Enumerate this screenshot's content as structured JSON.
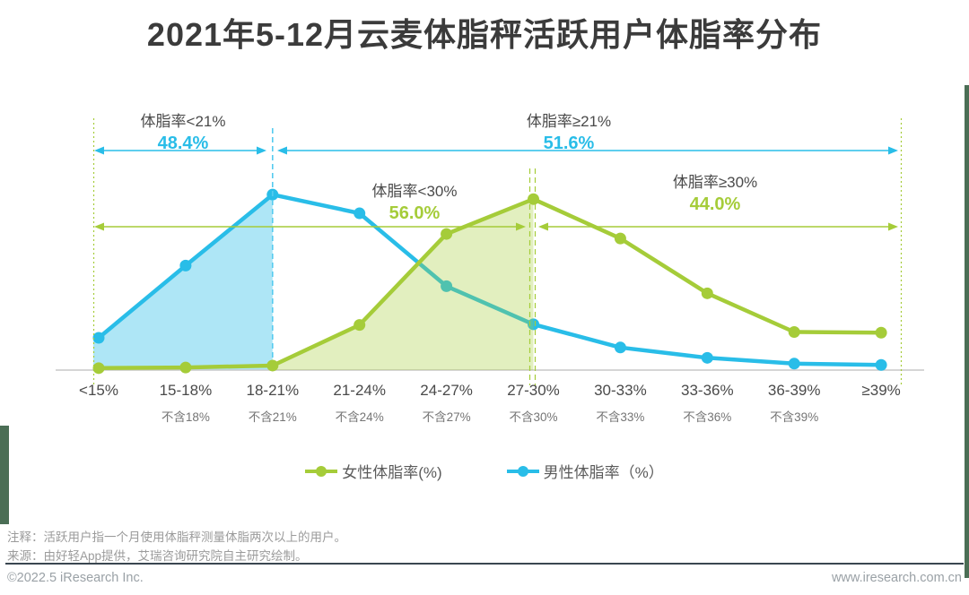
{
  "title": "2021年5-12月云麦体脂秤活跃用户体脂率分布",
  "annotations": [
    {
      "label": "体脂率<21%",
      "value": "48.4%",
      "series": "male"
    },
    {
      "label": "体脂率≥21%",
      "value": "51.6%",
      "series": "male"
    },
    {
      "label": "体脂率<30%",
      "value": "56.0%",
      "series": "female"
    },
    {
      "label": "体脂率≥30%",
      "value": "44.0%",
      "series": "female"
    }
  ],
  "legend": {
    "female": "女性体脂率(%)",
    "male": "男性体脂率（%）"
  },
  "footer": {
    "note1": "注释：活跃用户指一个月使用体脂秤测量体脂两次以上的用户。",
    "note2": "来源：由好轻App提供，艾瑞咨询研究院自主研究绘制。",
    "copyright": "©2022.5 iResearch Inc.",
    "website": "www.iresearch.com.cn"
  },
  "colors": {
    "male": "#29BDE8",
    "female": "#A5CC39",
    "male_dashed_guide": "#55CBEF",
    "male_fill_light": "#A9E2F4",
    "female_fill_light": "#DDE9B4",
    "title_text": "#3B3B3B",
    "axis_line": "#C8C8C8",
    "axis_label": "#4A4A4A",
    "note_text": "#9B9B9B",
    "divider": "#3A4650",
    "edge_strip": "#4B6E55"
  },
  "chart_data": {
    "type": "line",
    "title": "2021年5-12月云麦体脂秤活跃用户体脂率分布",
    "categories": [
      "<15%",
      "15-18%",
      "18-21%",
      "21-24%",
      "24-27%",
      "27-30%",
      "30-33%",
      "33-36%",
      "36-39%",
      "≥39%"
    ],
    "sub_labels": [
      "",
      "不含18%",
      "不含21%",
      "不含24%",
      "不含27%",
      "不含30%",
      "不含33%",
      "不含36%",
      "不含39%",
      ""
    ],
    "series": [
      {
        "name": "女性体脂率(%)",
        "color": "#A5CC39",
        "values": [
          0.3,
          0.4,
          0.7,
          7.0,
          21.1,
          26.5,
          20.4,
          11.9,
          5.9,
          5.8
        ]
      },
      {
        "name": "男性体脂率（%）",
        "color": "#29BDE8",
        "values": [
          5.0,
          16.2,
          27.2,
          24.3,
          13.0,
          7.1,
          3.5,
          1.9,
          1.0,
          0.8
        ]
      }
    ],
    "values_estimated_from_pixels": true,
    "summary": {
      "male_lt_21pct": 48.4,
      "male_gte_21pct": 51.6,
      "female_lt_30pct": 56.0,
      "female_gte_30pct": 44.0
    },
    "xlabel": "",
    "ylabel": "",
    "y_axis_visible": false,
    "grid": false,
    "legend_position": "bottom",
    "highlight_fills": {
      "male_filled_range": "<15% 到 18-21%",
      "female_filled_range": "18-21% 到 27-30%"
    }
  }
}
